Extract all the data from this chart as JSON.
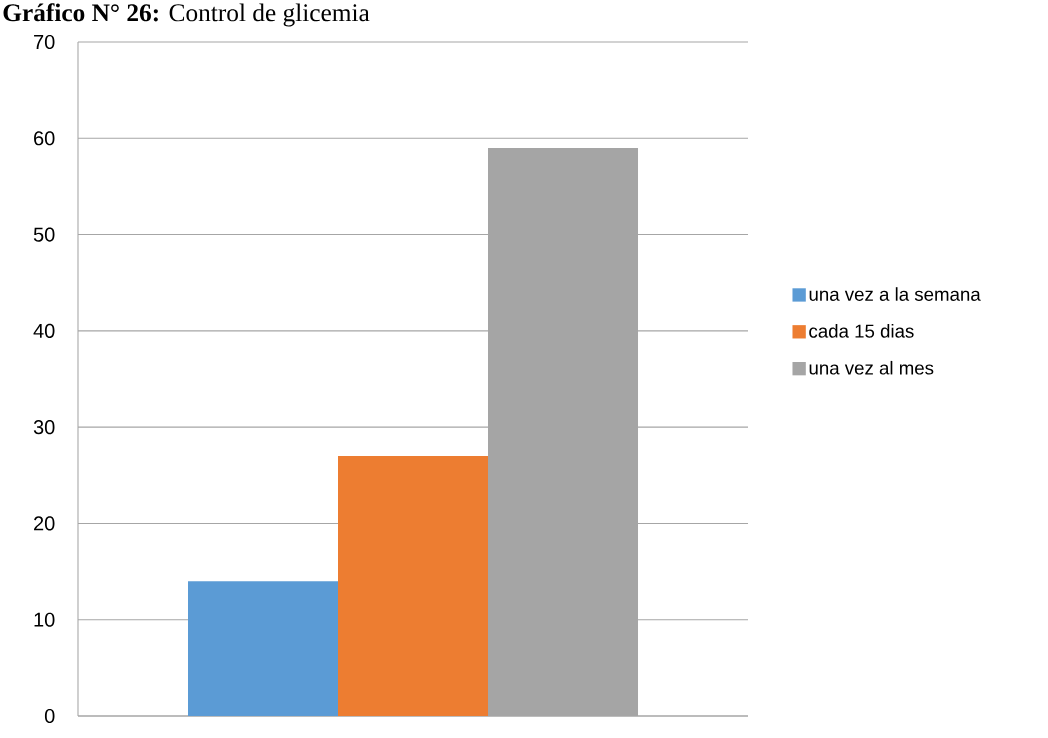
{
  "chart_data": {
    "type": "bar",
    "title": "**Gráfico N° 26:** Control de glicemia",
    "categories": [
      null
    ],
    "series": [
      {
        "name": "una vez a la semana",
        "color": "#5b9bd5",
        "values": [
          14
        ]
      },
      {
        "name": "cada 15 dias",
        "color": "#ed7d31",
        "values": [
          27
        ]
      },
      {
        "name": "una vez al mes",
        "color": "#a5a5a5",
        "values": [
          59
        ]
      }
    ],
    "ylim": [
      0,
      70
    ],
    "yticks": [
      0,
      10,
      20,
      30,
      40,
      50,
      60,
      70
    ],
    "grid": "y",
    "legend": "right"
  }
}
